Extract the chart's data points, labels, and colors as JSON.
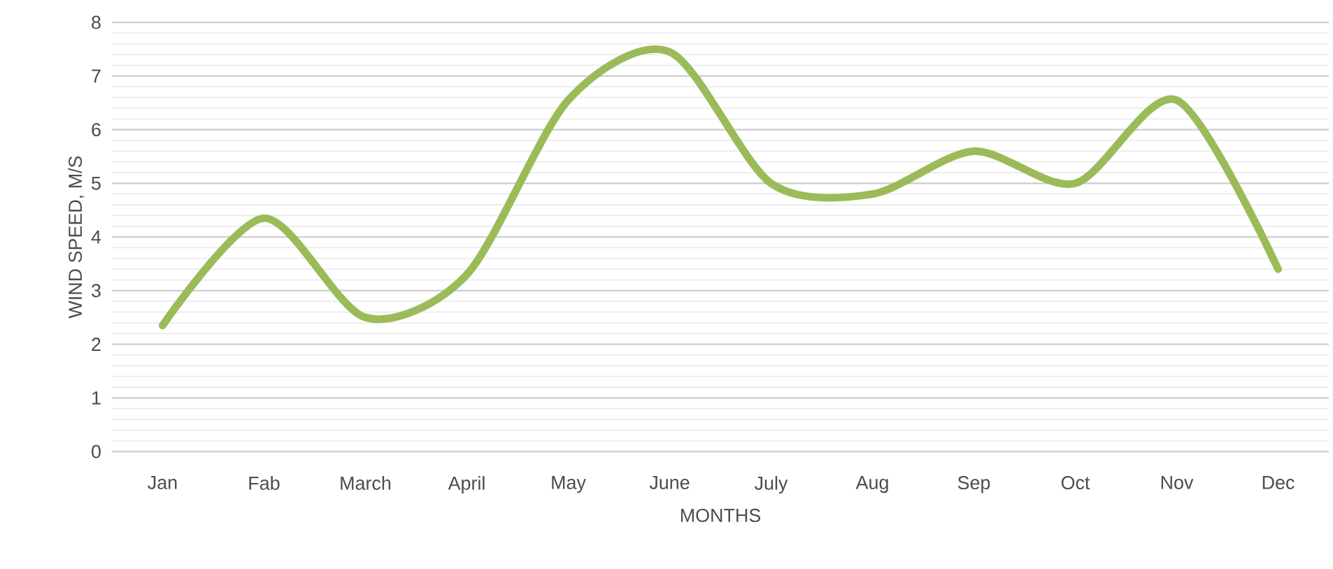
{
  "chart_data": {
    "type": "line",
    "xlabel": "MONTHS",
    "ylabel": "WIND SPEED, M/S",
    "categories": [
      "Jan",
      "Fab",
      "March",
      "April",
      "May",
      "June",
      "July",
      "Aug",
      "Sep",
      "Oct",
      "Nov",
      "Dec"
    ],
    "series": [
      {
        "color": "#9bbb59",
        "values": [
          2.35,
          4.35,
          2.5,
          3.3,
          6.55,
          7.45,
          5.0,
          4.8,
          5.6,
          5.0,
          6.55,
          3.4
        ]
      }
    ],
    "ylim": [
      0,
      8
    ],
    "yticks": [
      0,
      1,
      2,
      3,
      4,
      5,
      6,
      7,
      8
    ],
    "grid": "y",
    "marker": "none",
    "line_style": "solid"
  }
}
